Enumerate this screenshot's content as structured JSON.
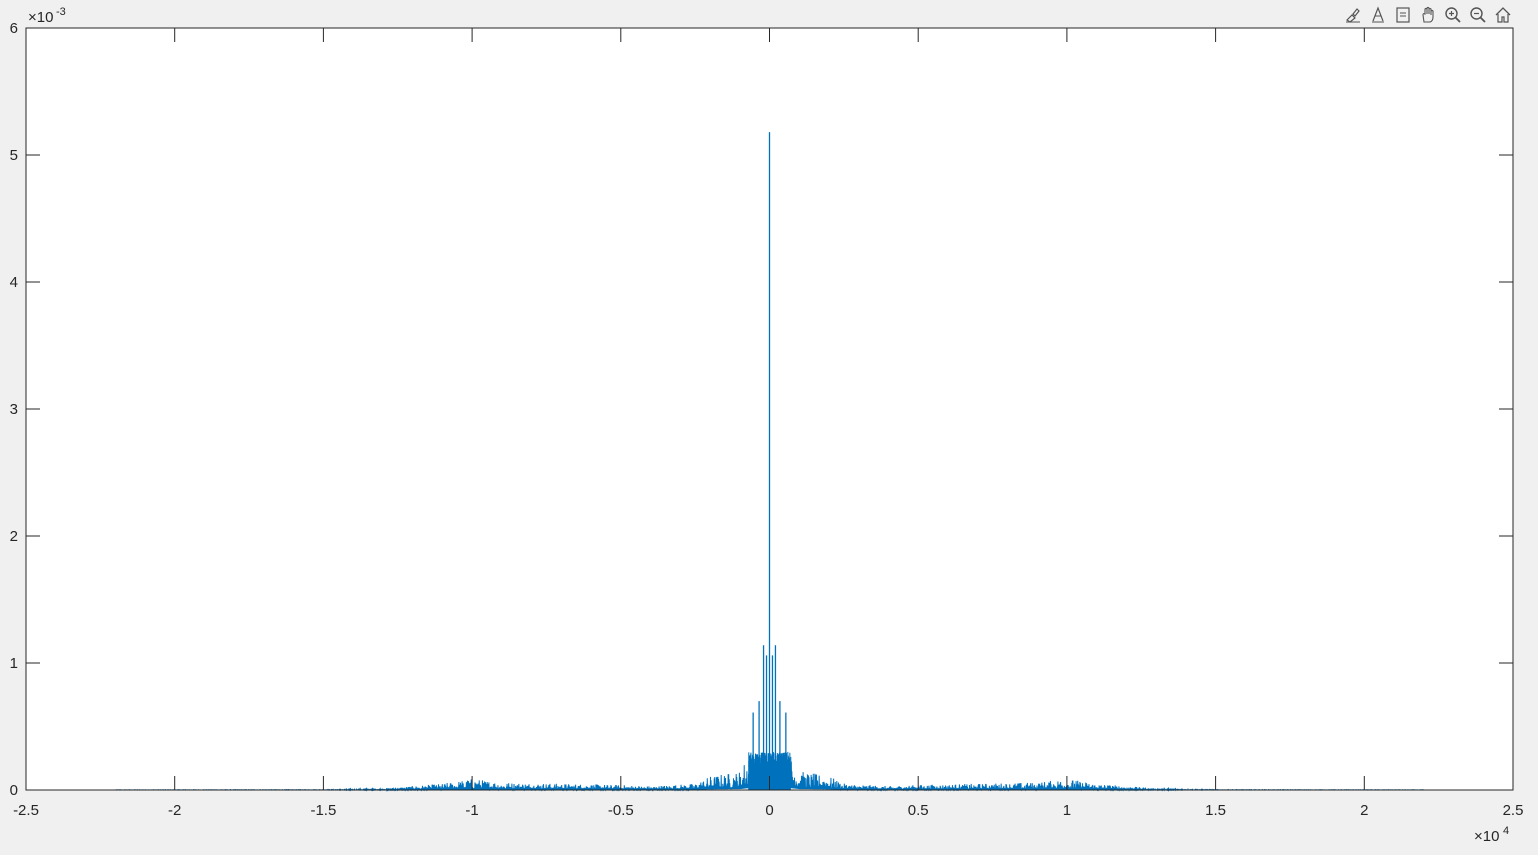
{
  "toolbar": {
    "buttons": [
      {
        "name": "brush-icon"
      },
      {
        "name": "data-tips-icon"
      },
      {
        "name": "restore-view-icon"
      },
      {
        "name": "pan-hand-icon"
      },
      {
        "name": "zoom-in-icon"
      },
      {
        "name": "zoom-out-icon"
      },
      {
        "name": "home-icon"
      }
    ]
  },
  "chart_data": {
    "type": "line",
    "title": "",
    "xlabel": "",
    "ylabel": "",
    "xlim": [
      -25000,
      25000
    ],
    "ylim": [
      0,
      0.006
    ],
    "x_tick_labels": [
      "-2.5",
      "-2",
      "-1.5",
      "-1",
      "-0.5",
      "0",
      "0.5",
      "1",
      "1.5",
      "2",
      "2.5"
    ],
    "y_tick_labels": [
      "0",
      "1",
      "2",
      "3",
      "4",
      "5",
      "6"
    ],
    "x_exponent": "×10^4",
    "y_exponent": "×10^-3",
    "grid": false,
    "line_color": "#0072BD",
    "series": [
      {
        "peaks": [
          {
            "x": 0,
            "y": 0.00518
          },
          {
            "x": -200,
            "y": 0.00114
          },
          {
            "x": 200,
            "y": 0.00114
          },
          {
            "x": -100,
            "y": 0.00106
          },
          {
            "x": 100,
            "y": 0.00106
          },
          {
            "x": -550,
            "y": 0.00061
          },
          {
            "x": 550,
            "y": 0.00061
          },
          {
            "x": -350,
            "y": 0.0007
          },
          {
            "x": 350,
            "y": 0.0007
          }
        ],
        "envelope": [
          {
            "x": -22000,
            "y": 2e-06
          },
          {
            "x": -15000,
            "y": 3e-06
          },
          {
            "x": -13000,
            "y": 1.2e-05
          },
          {
            "x": -11000,
            "y": 5e-05
          },
          {
            "x": -10000,
            "y": 9e-05
          },
          {
            "x": -9000,
            "y": 6e-05
          },
          {
            "x": -7000,
            "y": 5e-05
          },
          {
            "x": -5000,
            "y": 4e-05
          },
          {
            "x": -4000,
            "y": 3e-05
          },
          {
            "x": -2500,
            "y": 5e-05
          },
          {
            "x": -2000,
            "y": 0.00011
          },
          {
            "x": -1000,
            "y": 0.00015
          },
          {
            "x": -700,
            "y": 0.0003
          },
          {
            "x": 700,
            "y": 0.0003
          },
          {
            "x": 1000,
            "y": 0.00015
          },
          {
            "x": 2000,
            "y": 0.00011
          },
          {
            "x": 2500,
            "y": 5e-05
          },
          {
            "x": 4000,
            "y": 3e-05
          },
          {
            "x": 5000,
            "y": 4e-05
          },
          {
            "x": 7000,
            "y": 5e-05
          },
          {
            "x": 9000,
            "y": 6e-05
          },
          {
            "x": 10000,
            "y": 9e-05
          },
          {
            "x": 11000,
            "y": 5e-05
          },
          {
            "x": 13000,
            "y": 1.2e-05
          },
          {
            "x": 15000,
            "y": 3e-06
          },
          {
            "x": 22000,
            "y": 2e-06
          }
        ]
      }
    ]
  }
}
